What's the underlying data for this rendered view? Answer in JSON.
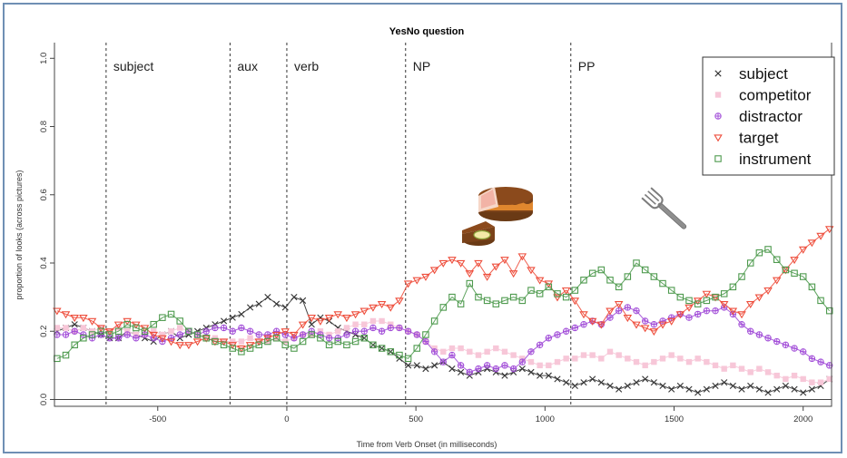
{
  "chart_data": {
    "type": "line",
    "title": "YesNo question",
    "xlabel": "Time from Verb Onset (in milliseconds)",
    "ylabel": "proportion of looks (across pictures)",
    "xlim": [
      -900,
      2110
    ],
    "ylim": [
      -0.02,
      1.03
    ],
    "x_ticks": [
      -500,
      0,
      500,
      1000,
      1500,
      2000
    ],
    "y_ticks": [
      0.0,
      0.2,
      0.4,
      0.6,
      0.8,
      1.0
    ],
    "x_tick_labels": [
      "-500",
      "0",
      "500",
      "1000",
      "1500",
      "2000"
    ],
    "y_tick_labels": [
      "0.0",
      "0.2",
      "0.4",
      "0.6",
      "0.8",
      "1.0"
    ],
    "baseline": 0,
    "regions": [
      {
        "label": "subject",
        "start": -700
      },
      {
        "label": "aux",
        "start": -220
      },
      {
        "label": "verb",
        "start": 0
      },
      {
        "label": "NP",
        "start": 460
      },
      {
        "label": "PP",
        "start": 1100
      }
    ],
    "legend_position": "top-right",
    "illustrations": [
      "cake-icon",
      "fork-icon"
    ],
    "x": [
      -890,
      -856,
      -822,
      -788,
      -754,
      -720,
      -686,
      -652,
      -618,
      -584,
      -550,
      -516,
      -482,
      -448,
      -414,
      -380,
      -346,
      -312,
      -278,
      -244,
      -210,
      -176,
      -142,
      -108,
      -74,
      -40,
      -6,
      28,
      62,
      96,
      130,
      164,
      198,
      232,
      266,
      300,
      334,
      368,
      402,
      436,
      470,
      504,
      538,
      572,
      606,
      640,
      674,
      708,
      742,
      776,
      810,
      844,
      878,
      912,
      946,
      980,
      1014,
      1048,
      1082,
      1116,
      1150,
      1184,
      1218,
      1252,
      1286,
      1320,
      1354,
      1388,
      1422,
      1456,
      1490,
      1524,
      1558,
      1592,
      1626,
      1660,
      1694,
      1728,
      1762,
      1796,
      1830,
      1864,
      1898,
      1932,
      1966,
      2000,
      2034,
      2068,
      2102
    ],
    "series": [
      {
        "name": "subject",
        "color": "#333333",
        "marker": "x",
        "values": [
          0.2,
          0.21,
          0.22,
          0.21,
          0.2,
          0.19,
          0.18,
          0.18,
          0.2,
          0.19,
          0.18,
          0.17,
          0.19,
          0.2,
          0.18,
          0.19,
          0.2,
          0.21,
          0.22,
          0.23,
          0.24,
          0.25,
          0.27,
          0.28,
          0.3,
          0.28,
          0.27,
          0.3,
          0.29,
          0.22,
          0.24,
          0.23,
          0.21,
          0.2,
          0.19,
          0.18,
          0.16,
          0.15,
          0.14,
          0.12,
          0.1,
          0.1,
          0.09,
          0.1,
          0.11,
          0.09,
          0.08,
          0.07,
          0.08,
          0.09,
          0.08,
          0.07,
          0.08,
          0.09,
          0.08,
          0.07,
          0.07,
          0.06,
          0.05,
          0.04,
          0.05,
          0.06,
          0.05,
          0.04,
          0.03,
          0.04,
          0.05,
          0.06,
          0.05,
          0.04,
          0.03,
          0.04,
          0.03,
          0.02,
          0.03,
          0.04,
          0.05,
          0.04,
          0.03,
          0.04,
          0.03,
          0.02,
          0.03,
          0.04,
          0.03,
          0.02,
          0.03,
          0.04,
          0.06
        ]
      },
      {
        "name": "competitor",
        "color": "#f7c7d8",
        "marker": "square",
        "values": [
          0.21,
          0.21,
          0.2,
          0.21,
          0.2,
          0.21,
          0.2,
          0.21,
          0.2,
          0.19,
          0.19,
          0.2,
          0.19,
          0.2,
          0.21,
          0.2,
          0.19,
          0.18,
          0.18,
          0.17,
          0.17,
          0.17,
          0.18,
          0.17,
          0.17,
          0.18,
          0.17,
          0.18,
          0.19,
          0.19,
          0.2,
          0.19,
          0.2,
          0.21,
          0.22,
          0.22,
          0.23,
          0.23,
          0.22,
          0.21,
          0.2,
          0.19,
          0.17,
          0.15,
          0.14,
          0.15,
          0.15,
          0.14,
          0.13,
          0.14,
          0.15,
          0.14,
          0.13,
          0.12,
          0.11,
          0.1,
          0.1,
          0.11,
          0.12,
          0.12,
          0.13,
          0.13,
          0.12,
          0.14,
          0.13,
          0.12,
          0.11,
          0.1,
          0.11,
          0.12,
          0.13,
          0.12,
          0.11,
          0.12,
          0.11,
          0.1,
          0.09,
          0.1,
          0.09,
          0.08,
          0.09,
          0.08,
          0.07,
          0.06,
          0.07,
          0.06,
          0.05,
          0.05,
          0.06
        ]
      },
      {
        "name": "distractor",
        "color": "#a24ed8",
        "marker": "crossed-circle",
        "values": [
          0.19,
          0.19,
          0.2,
          0.19,
          0.18,
          0.19,
          0.18,
          0.18,
          0.19,
          0.18,
          0.19,
          0.18,
          0.17,
          0.18,
          0.19,
          0.2,
          0.19,
          0.2,
          0.21,
          0.21,
          0.2,
          0.21,
          0.2,
          0.19,
          0.19,
          0.2,
          0.19,
          0.18,
          0.19,
          0.2,
          0.19,
          0.18,
          0.18,
          0.19,
          0.2,
          0.2,
          0.21,
          0.2,
          0.21,
          0.21,
          0.2,
          0.19,
          0.17,
          0.14,
          0.11,
          0.13,
          0.1,
          0.08,
          0.09,
          0.1,
          0.09,
          0.1,
          0.09,
          0.11,
          0.14,
          0.16,
          0.18,
          0.19,
          0.2,
          0.21,
          0.22,
          0.23,
          0.22,
          0.24,
          0.26,
          0.27,
          0.26,
          0.23,
          0.22,
          0.23,
          0.24,
          0.25,
          0.24,
          0.25,
          0.26,
          0.26,
          0.27,
          0.25,
          0.22,
          0.2,
          0.19,
          0.18,
          0.17,
          0.16,
          0.15,
          0.14,
          0.12,
          0.11,
          0.1
        ]
      },
      {
        "name": "target",
        "color": "#ee4e3c",
        "marker": "triangle-down",
        "values": [
          0.26,
          0.25,
          0.24,
          0.24,
          0.23,
          0.21,
          0.2,
          0.22,
          0.23,
          0.22,
          0.21,
          0.19,
          0.18,
          0.17,
          0.16,
          0.16,
          0.17,
          0.18,
          0.17,
          0.17,
          0.16,
          0.15,
          0.16,
          0.17,
          0.18,
          0.19,
          0.2,
          0.19,
          0.22,
          0.24,
          0.23,
          0.24,
          0.25,
          0.24,
          0.25,
          0.26,
          0.27,
          0.28,
          0.27,
          0.29,
          0.34,
          0.35,
          0.36,
          0.38,
          0.4,
          0.41,
          0.4,
          0.37,
          0.4,
          0.36,
          0.39,
          0.41,
          0.37,
          0.42,
          0.38,
          0.35,
          0.34,
          0.3,
          0.32,
          0.29,
          0.25,
          0.23,
          0.22,
          0.26,
          0.28,
          0.24,
          0.22,
          0.21,
          0.2,
          0.22,
          0.23,
          0.25,
          0.27,
          0.29,
          0.31,
          0.3,
          0.28,
          0.26,
          0.25,
          0.28,
          0.3,
          0.32,
          0.35,
          0.38,
          0.41,
          0.44,
          0.46,
          0.48,
          0.5
        ]
      },
      {
        "name": "instrument",
        "color": "#4e9a4e",
        "marker": "square-open",
        "values": [
          0.12,
          0.13,
          0.16,
          0.18,
          0.19,
          0.2,
          0.19,
          0.2,
          0.22,
          0.21,
          0.2,
          0.22,
          0.24,
          0.25,
          0.23,
          0.2,
          0.19,
          0.18,
          0.17,
          0.16,
          0.15,
          0.14,
          0.15,
          0.16,
          0.17,
          0.18,
          0.16,
          0.15,
          0.17,
          0.19,
          0.18,
          0.16,
          0.17,
          0.16,
          0.17,
          0.18,
          0.16,
          0.15,
          0.14,
          0.13,
          0.12,
          0.15,
          0.19,
          0.23,
          0.27,
          0.3,
          0.28,
          0.34,
          0.3,
          0.29,
          0.28,
          0.29,
          0.3,
          0.29,
          0.32,
          0.31,
          0.33,
          0.31,
          0.3,
          0.32,
          0.35,
          0.37,
          0.38,
          0.35,
          0.33,
          0.36,
          0.4,
          0.38,
          0.36,
          0.34,
          0.32,
          0.3,
          0.29,
          0.28,
          0.29,
          0.3,
          0.31,
          0.33,
          0.36,
          0.4,
          0.43,
          0.44,
          0.41,
          0.38,
          0.37,
          0.36,
          0.33,
          0.29,
          0.26
        ]
      }
    ]
  }
}
